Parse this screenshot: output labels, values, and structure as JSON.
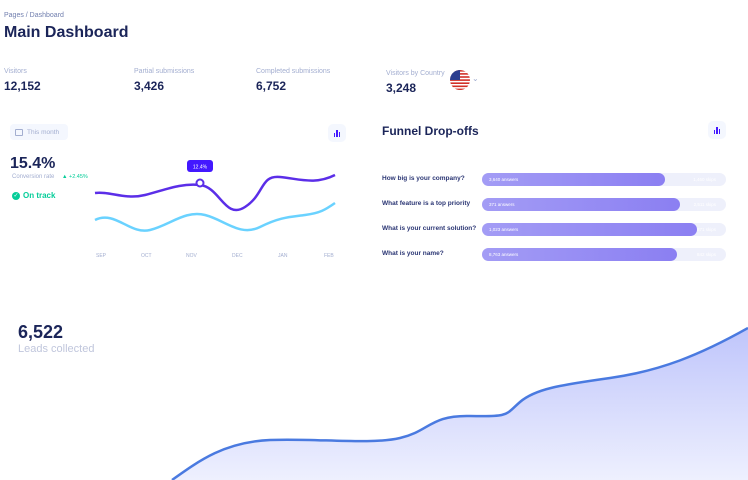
{
  "header": {
    "breadcrumb": "Pages / Dashboard",
    "title": "Main Dashboard"
  },
  "stats": [
    {
      "label": "Visitors",
      "value": "12,152"
    },
    {
      "label": "Partial submissions",
      "value": "3,426"
    },
    {
      "label": "Completed submissions",
      "value": "6,752"
    },
    {
      "label": "Visitors by Country",
      "value": "3,248"
    }
  ],
  "conversion": {
    "period_label": "This month",
    "value": "15.4%",
    "label": "Conversion rate",
    "delta": "+2.45%",
    "status": "On track",
    "tooltip": "12.4%",
    "months": [
      "SEP",
      "OCT",
      "NOV",
      "DEC",
      "JAN",
      "FEB"
    ]
  },
  "funnel": {
    "title": "Funnel Drop-offs",
    "rows": [
      {
        "question": "How big is your company?",
        "answers": "3,640 answers",
        "pct": "1,460 skips",
        "fill": 0.75
      },
      {
        "question": "What feature is a top priority",
        "answers": "371 answers",
        "pct": "2,511 skips",
        "fill": 0.81
      },
      {
        "question": "What is your current solution?",
        "answers": "1,023 answers",
        "pct": "871 skips",
        "fill": 0.88
      },
      {
        "question": "What is your name?",
        "answers": "8,763 answers",
        "pct": "842 skips",
        "fill": 0.8
      }
    ]
  },
  "leads": {
    "value": "6,522",
    "label": "Leads collected"
  },
  "colors": {
    "accent": "#4318ff",
    "line_dark": "#5b2ee8",
    "line_light": "#6ad2ff",
    "success": "#05cd99",
    "area": "#c8cdfb"
  }
}
